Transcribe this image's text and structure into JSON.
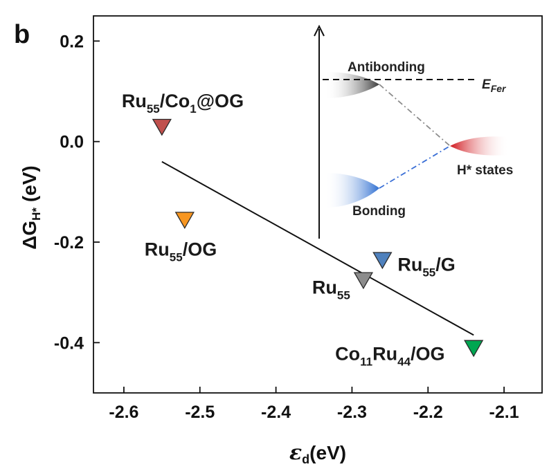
{
  "chart_data": {
    "type": "scatter",
    "panel_label": "b",
    "xlabel_main": "ε",
    "xlabel_sub": "d",
    "xlabel_unit": "(eV)",
    "ylabel_main": "ΔG",
    "ylabel_sub": "H*",
    "ylabel_unit": " (eV)",
    "xlim": [
      -2.64,
      -2.05
    ],
    "ylim": [
      -0.5,
      0.25
    ],
    "xticks": [
      {
        "value": -2.6,
        "label": "-2.6"
      },
      {
        "value": -2.5,
        "label": "-2.5"
      },
      {
        "value": -2.4,
        "label": "-2.4"
      },
      {
        "value": -2.3,
        "label": "-2.3"
      },
      {
        "value": -2.2,
        "label": "-2.2"
      },
      {
        "value": -2.1,
        "label": "-2.1"
      }
    ],
    "yticks": [
      {
        "value": 0.2,
        "label": "0.2"
      },
      {
        "value": 0.0,
        "label": "0.0"
      },
      {
        "value": -0.2,
        "label": "-0.2"
      },
      {
        "value": -0.4,
        "label": "-0.4"
      }
    ],
    "points": [
      {
        "x": -2.55,
        "y": 0.03,
        "color": "#c0504d",
        "label_main": "Ru",
        "label_sub1": "55",
        "label_mid": "/Co",
        "label_sub2": "1",
        "label_end": "@OG"
      },
      {
        "x": -2.52,
        "y": -0.155,
        "color": "#f79621",
        "label_main": "Ru",
        "label_sub1": "55",
        "label_mid": "/OG",
        "label_sub2": "",
        "label_end": ""
      },
      {
        "x": -2.26,
        "y": -0.235,
        "color": "#4f81bd",
        "label_main": "Ru",
        "label_sub1": "55",
        "label_mid": "/G",
        "label_sub2": "",
        "label_end": ""
      },
      {
        "x": -2.285,
        "y": -0.275,
        "color": "#8c8c8c",
        "label_main": "Ru",
        "label_sub1": "55",
        "label_mid": "",
        "label_sub2": "",
        "label_end": ""
      },
      {
        "x": -2.14,
        "y": -0.41,
        "color": "#00a651",
        "label_main": "Co",
        "label_sub1": "11",
        "label_mid": "Ru",
        "label_sub2": "44",
        "label_end": "/OG"
      }
    ],
    "fit_line": {
      "x1": -2.55,
      "y1": -0.04,
      "x2": -2.14,
      "y2": -0.385
    },
    "inset": {
      "antibonding": "Antibonding",
      "bonding": "Bonding",
      "h_states": "H* states",
      "efermi_main": "E",
      "efermi_sub": "Fer",
      "colors": {
        "antibonding": "#3a3a3a",
        "bonding": "#2f6fd1",
        "h_states": "#d0161c",
        "connector_top": "#8c8c8c",
        "connector_bottom": "#3a6fd6"
      }
    }
  }
}
